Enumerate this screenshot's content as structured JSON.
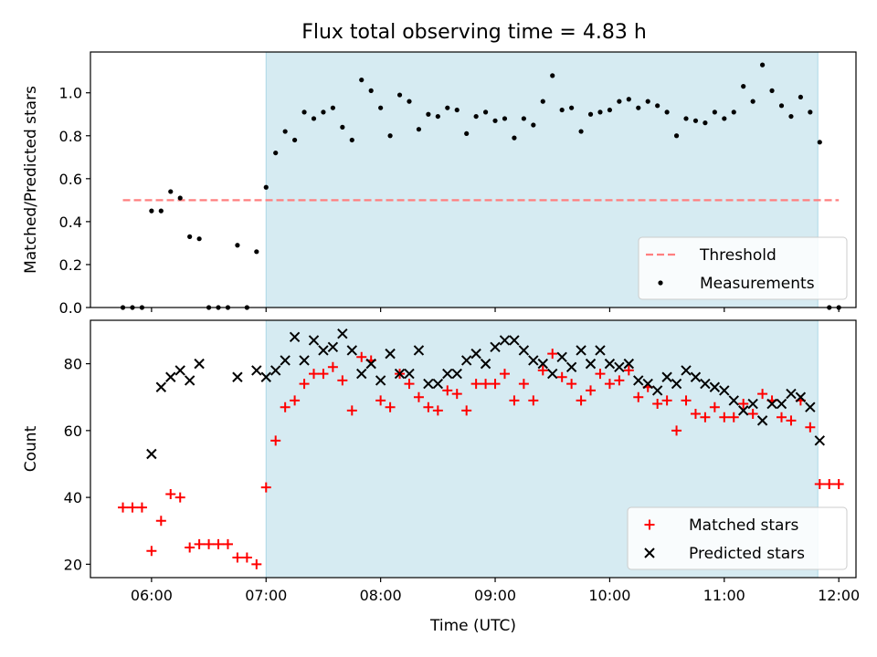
{
  "title": "Flux total observing time = 4.83 h",
  "colors": {
    "shade": "#add8e6",
    "threshold": "#ff7f7f",
    "measurement": "#000000",
    "matched": "#ff0000",
    "predicted": "#000000"
  },
  "chart_data": [
    {
      "type": "scatter",
      "ylabel": "Matched/Predicted stars",
      "ylim": [
        0,
        1.19
      ],
      "yticks": [
        "0.0",
        "0.2",
        "0.4",
        "0.6",
        "0.8",
        "1.0"
      ],
      "xlim": [
        "05:28",
        "12:09"
      ],
      "shaded_span": [
        "07:00",
        "11:49"
      ],
      "legend_position": "lower right",
      "legend": [
        "Threshold",
        "Measurements"
      ],
      "threshold": {
        "name": "Threshold",
        "value": 0.5,
        "x": [
          "05:45",
          "12:00"
        ]
      },
      "series": [
        {
          "name": "Measurements",
          "points": [
            [
              "05:45",
              0
            ],
            [
              "05:50",
              0
            ],
            [
              "05:55",
              0
            ],
            [
              "06:00",
              0.45
            ],
            [
              "06:05",
              0.45
            ],
            [
              "06:10",
              0.54
            ],
            [
              "06:15",
              0.51
            ],
            [
              "06:20",
              0.33
            ],
            [
              "06:25",
              0.32
            ],
            [
              "06:30",
              0
            ],
            [
              "06:35",
              0
            ],
            [
              "06:40",
              0
            ],
            [
              "06:45",
              0.29
            ],
            [
              "06:50",
              0
            ],
            [
              "06:55",
              0.26
            ],
            [
              "07:00",
              0.56
            ],
            [
              "07:05",
              0.72
            ],
            [
              "07:10",
              0.82
            ],
            [
              "07:15",
              0.78
            ],
            [
              "07:20",
              0.91
            ],
            [
              "07:25",
              0.88
            ],
            [
              "07:30",
              0.91
            ],
            [
              "07:35",
              0.93
            ],
            [
              "07:40",
              0.84
            ],
            [
              "07:45",
              0.78
            ],
            [
              "07:50",
              1.06
            ],
            [
              "07:55",
              1.01
            ],
            [
              "08:00",
              0.93
            ],
            [
              "08:05",
              0.8
            ],
            [
              "08:10",
              0.99
            ],
            [
              "08:15",
              0.96
            ],
            [
              "08:20",
              0.83
            ],
            [
              "08:25",
              0.9
            ],
            [
              "08:30",
              0.89
            ],
            [
              "08:35",
              0.93
            ],
            [
              "08:40",
              0.92
            ],
            [
              "08:45",
              0.81
            ],
            [
              "08:50",
              0.89
            ],
            [
              "08:55",
              0.91
            ],
            [
              "09:00",
              0.87
            ],
            [
              "09:05",
              0.88
            ],
            [
              "09:10",
              0.79
            ],
            [
              "09:15",
              0.88
            ],
            [
              "09:20",
              0.85
            ],
            [
              "09:25",
              0.96
            ],
            [
              "09:30",
              1.08
            ],
            [
              "09:35",
              0.92
            ],
            [
              "09:40",
              0.93
            ],
            [
              "09:45",
              0.82
            ],
            [
              "09:50",
              0.9
            ],
            [
              "09:55",
              0.91
            ],
            [
              "10:00",
              0.92
            ],
            [
              "10:05",
              0.96
            ],
            [
              "10:10",
              0.97
            ],
            [
              "10:15",
              0.93
            ],
            [
              "10:20",
              0.96
            ],
            [
              "10:25",
              0.94
            ],
            [
              "10:30",
              0.91
            ],
            [
              "10:35",
              0.8
            ],
            [
              "10:40",
              0.88
            ],
            [
              "10:45",
              0.87
            ],
            [
              "10:50",
              0.86
            ],
            [
              "10:55",
              0.91
            ],
            [
              "11:00",
              0.88
            ],
            [
              "11:05",
              0.91
            ],
            [
              "11:10",
              1.03
            ],
            [
              "11:15",
              0.96
            ],
            [
              "11:20",
              1.13
            ],
            [
              "11:25",
              1.01
            ],
            [
              "11:30",
              0.94
            ],
            [
              "11:35",
              0.89
            ],
            [
              "11:40",
              0.98
            ],
            [
              "11:45",
              0.91
            ],
            [
              "11:50",
              0.77
            ],
            [
              "11:55",
              0
            ],
            [
              "12:00",
              0
            ]
          ]
        }
      ]
    },
    {
      "type": "scatter",
      "xlabel": "Time (UTC)",
      "ylabel": "Count",
      "ylim": [
        16,
        93
      ],
      "yticks": [
        "20",
        "40",
        "60",
        "80"
      ],
      "xlim": [
        "05:28",
        "12:09"
      ],
      "xticks": [
        "06:00",
        "07:00",
        "08:00",
        "09:00",
        "10:00",
        "11:00",
        "12:00"
      ],
      "shaded_span": [
        "07:00",
        "11:49"
      ],
      "legend_position": "lower right",
      "legend": [
        "Matched stars",
        "Predicted stars"
      ],
      "series": [
        {
          "name": "Matched stars",
          "marker": "+",
          "points": [
            [
              "05:45",
              37
            ],
            [
              "05:50",
              37
            ],
            [
              "05:55",
              37
            ],
            [
              "06:00",
              24
            ],
            [
              "06:05",
              33
            ],
            [
              "06:10",
              41
            ],
            [
              "06:15",
              40
            ],
            [
              "06:20",
              25
            ],
            [
              "06:25",
              26
            ],
            [
              "06:30",
              26
            ],
            [
              "06:35",
              26
            ],
            [
              "06:40",
              26
            ],
            [
              "06:45",
              22
            ],
            [
              "06:50",
              22
            ],
            [
              "06:55",
              20
            ],
            [
              "07:00",
              43
            ],
            [
              "07:05",
              57
            ],
            [
              "07:10",
              67
            ],
            [
              "07:15",
              69
            ],
            [
              "07:20",
              74
            ],
            [
              "07:25",
              77
            ],
            [
              "07:30",
              77
            ],
            [
              "07:35",
              79
            ],
            [
              "07:40",
              75
            ],
            [
              "07:45",
              66
            ],
            [
              "07:50",
              82
            ],
            [
              "07:55",
              81
            ],
            [
              "08:00",
              69
            ],
            [
              "08:05",
              67
            ],
            [
              "08:10",
              77
            ],
            [
              "08:15",
              74
            ],
            [
              "08:20",
              70
            ],
            [
              "08:25",
              67
            ],
            [
              "08:30",
              66
            ],
            [
              "08:35",
              72
            ],
            [
              "08:40",
              71
            ],
            [
              "08:45",
              66
            ],
            [
              "08:50",
              74
            ],
            [
              "08:55",
              74
            ],
            [
              "09:00",
              74
            ],
            [
              "09:05",
              77
            ],
            [
              "09:10",
              69
            ],
            [
              "09:15",
              74
            ],
            [
              "09:20",
              69
            ],
            [
              "09:25",
              78
            ],
            [
              "09:30",
              83
            ],
            [
              "09:35",
              76
            ],
            [
              "09:40",
              74
            ],
            [
              "09:45",
              69
            ],
            [
              "09:50",
              72
            ],
            [
              "09:55",
              77
            ],
            [
              "10:00",
              74
            ],
            [
              "10:05",
              75
            ],
            [
              "10:10",
              78
            ],
            [
              "10:15",
              70
            ],
            [
              "10:20",
              73
            ],
            [
              "10:25",
              68
            ],
            [
              "10:30",
              69
            ],
            [
              "10:35",
              60
            ],
            [
              "10:40",
              69
            ],
            [
              "10:45",
              65
            ],
            [
              "10:50",
              64
            ],
            [
              "10:55",
              67
            ],
            [
              "11:00",
              64
            ],
            [
              "11:05",
              64
            ],
            [
              "11:10",
              68
            ],
            [
              "11:15",
              65
            ],
            [
              "11:20",
              71
            ],
            [
              "11:25",
              69
            ],
            [
              "11:30",
              64
            ],
            [
              "11:35",
              63
            ],
            [
              "11:40",
              69
            ],
            [
              "11:45",
              61
            ],
            [
              "11:50",
              44
            ],
            [
              "11:55",
              44
            ],
            [
              "12:00",
              44
            ]
          ]
        },
        {
          "name": "Predicted stars",
          "marker": "x",
          "points": [
            [
              "06:00",
              53
            ],
            [
              "06:05",
              73
            ],
            [
              "06:10",
              76
            ],
            [
              "06:15",
              78
            ],
            [
              "06:20",
              75
            ],
            [
              "06:25",
              80
            ],
            [
              "06:45",
              76
            ],
            [
              "06:55",
              78
            ],
            [
              "07:00",
              76
            ],
            [
              "07:05",
              78
            ],
            [
              "07:10",
              81
            ],
            [
              "07:15",
              88
            ],
            [
              "07:20",
              81
            ],
            [
              "07:25",
              87
            ],
            [
              "07:30",
              84
            ],
            [
              "07:35",
              85
            ],
            [
              "07:40",
              89
            ],
            [
              "07:45",
              84
            ],
            [
              "07:50",
              77
            ],
            [
              "07:55",
              80
            ],
            [
              "08:00",
              75
            ],
            [
              "08:05",
              83
            ],
            [
              "08:10",
              77
            ],
            [
              "08:15",
              77
            ],
            [
              "08:20",
              84
            ],
            [
              "08:25",
              74
            ],
            [
              "08:30",
              74
            ],
            [
              "08:35",
              77
            ],
            [
              "08:40",
              77
            ],
            [
              "08:45",
              81
            ],
            [
              "08:50",
              83
            ],
            [
              "08:55",
              80
            ],
            [
              "09:00",
              85
            ],
            [
              "09:05",
              87
            ],
            [
              "09:10",
              87
            ],
            [
              "09:15",
              84
            ],
            [
              "09:20",
              81
            ],
            [
              "09:25",
              80
            ],
            [
              "09:30",
              77
            ],
            [
              "09:35",
              82
            ],
            [
              "09:40",
              79
            ],
            [
              "09:45",
              84
            ],
            [
              "09:50",
              80
            ],
            [
              "09:55",
              84
            ],
            [
              "10:00",
              80
            ],
            [
              "10:05",
              79
            ],
            [
              "10:10",
              80
            ],
            [
              "10:15",
              75
            ],
            [
              "10:20",
              74
            ],
            [
              "10:25",
              72
            ],
            [
              "10:30",
              76
            ],
            [
              "10:35",
              74
            ],
            [
              "10:40",
              78
            ],
            [
              "10:45",
              76
            ],
            [
              "10:50",
              74
            ],
            [
              "10:55",
              73
            ],
            [
              "11:00",
              72
            ],
            [
              "11:05",
              69
            ],
            [
              "11:10",
              66
            ],
            [
              "11:15",
              68
            ],
            [
              "11:20",
              63
            ],
            [
              "11:25",
              68
            ],
            [
              "11:30",
              68
            ],
            [
              "11:35",
              71
            ],
            [
              "11:40",
              70
            ],
            [
              "11:45",
              67
            ],
            [
              "11:50",
              57
            ]
          ]
        }
      ]
    }
  ]
}
